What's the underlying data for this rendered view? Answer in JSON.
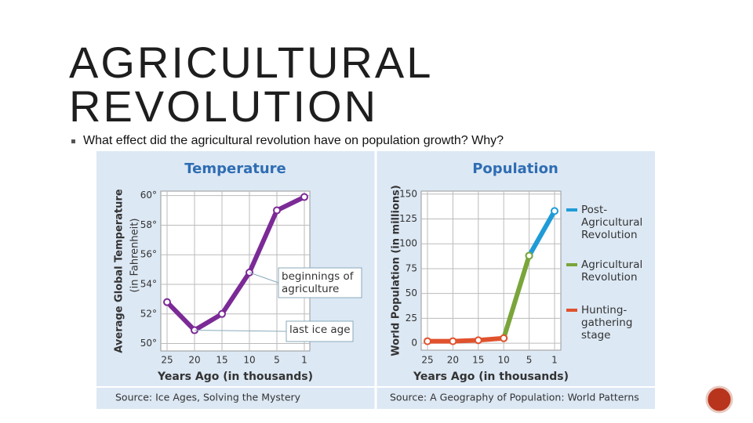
{
  "slide": {
    "title_lines": [
      "AGRICULTURAL",
      "REVOLUTION"
    ],
    "bullet": "What effect did the agricultural revolution have on population growth? Why?"
  },
  "chart_data": [
    {
      "type": "line",
      "title": "Temperature",
      "y_label": "Average Global Temperature",
      "y_sublabel": "(in Fahrenheit)",
      "x_label": "Years Ago (in thousands)",
      "categories": [
        "25",
        "20",
        "15",
        "10",
        "5",
        "1"
      ],
      "values": [
        52.8,
        50.9,
        52.0,
        54.8,
        59.0,
        59.9
      ],
      "color": "#7b2a96",
      "ylim": [
        49.5,
        60.3
      ],
      "yticks": [
        {
          "value": 50,
          "label": "50°"
        },
        {
          "value": 52,
          "label": "52°"
        },
        {
          "value": 54,
          "label": "54°"
        },
        {
          "value": 56,
          "label": "56°"
        },
        {
          "value": 58,
          "label": "58°"
        },
        {
          "value": 60,
          "label": "60°"
        }
      ],
      "grid": true,
      "annotations": [
        "beginnings of agriculture",
        "last ice age"
      ],
      "source": "Source: Ice Ages, Solving the Mystery"
    },
    {
      "type": "line",
      "title": "Population",
      "y_label": "World Population (in millions)",
      "x_label": "Years Ago (in thousands)",
      "categories": [
        "25",
        "20",
        "15",
        "10",
        "5",
        "1"
      ],
      "series": [
        {
          "name": "Post-Agricultural Revolution",
          "color": "#1f9bd7",
          "values": [
            null,
            null,
            null,
            null,
            88,
            133
          ]
        },
        {
          "name": "Agricultural Revolution",
          "color": "#7aa53a",
          "values": [
            null,
            null,
            null,
            5,
            88,
            null
          ]
        },
        {
          "name": "Hunting-gathering stage",
          "color": "#e0522d",
          "values": [
            2,
            2,
            3,
            5,
            null,
            null
          ]
        }
      ],
      "ylim": [
        -7,
        153
      ],
      "yticks": [
        0,
        25,
        50,
        75,
        100,
        125,
        150
      ],
      "grid": true,
      "source": "Source: A Geography of Population: World Patterns"
    }
  ]
}
